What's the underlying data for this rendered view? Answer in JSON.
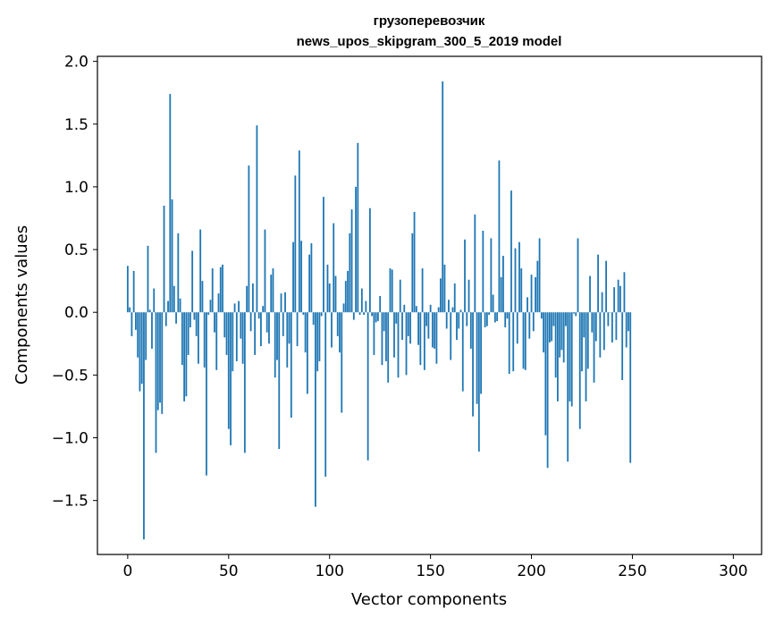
{
  "chart_data": {
    "type": "bar",
    "title_line1": "грузоперевозчик",
    "title_line2": "news_upos_skipgram_300_5_2019 model",
    "xlabel": "Vector components",
    "ylabel": "Components values",
    "xlim": [
      -15,
      314
    ],
    "ylim": [
      -1.93,
      2.04
    ],
    "grid": false,
    "bar_color": "#1f77b4",
    "x_ticks": [
      0,
      50,
      100,
      150,
      200,
      250,
      300
    ],
    "x_tick_labels": [
      "0",
      "50",
      "100",
      "150",
      "200",
      "250",
      "300"
    ],
    "y_ticks": [
      -1.5,
      -1.0,
      -0.5,
      0.0,
      0.5,
      1.0,
      1.5,
      2.0
    ],
    "y_tick_labels": [
      "−1.5",
      "−1.0",
      "−0.5",
      "0.0",
      "0.5",
      "1.0",
      "1.5",
      "2.0"
    ],
    "values": [
      0.37,
      0.04,
      -0.19,
      0.33,
      -0.14,
      -0.36,
      -0.63,
      -0.57,
      -1.81,
      -0.38,
      0.53,
      0.02,
      -0.29,
      0.19,
      -1.12,
      -0.78,
      -0.72,
      -0.81,
      0.85,
      -0.11,
      0.09,
      1.74,
      0.9,
      0.21,
      -0.09,
      0.63,
      0.11,
      -0.42,
      -0.71,
      -0.67,
      -0.34,
      -0.12,
      0.49,
      -0.06,
      -0.19,
      -0.41,
      0.66,
      0.25,
      -0.44,
      -1.3,
      -0.02,
      0.1,
      0.35,
      -0.16,
      -0.46,
      0.15,
      0.36,
      0.38,
      -0.2,
      -0.34,
      -0.93,
      -1.06,
      -0.47,
      0.07,
      -0.39,
      0.09,
      -0.21,
      -0.41,
      -1.12,
      0.21,
      1.17,
      -0.15,
      0.23,
      -0.34,
      1.49,
      -0.05,
      -0.27,
      0.05,
      0.66,
      -0.16,
      -0.25,
      0.3,
      0.35,
      -0.52,
      -0.38,
      -1.09,
      0.15,
      -0.19,
      0.16,
      -0.44,
      -0.25,
      -0.84,
      0.56,
      1.09,
      -0.27,
      1.29,
      0.57,
      -0.02,
      -0.32,
      -0.65,
      0.46,
      0.55,
      -0.1,
      -1.55,
      -0.47,
      -0.39,
      -0.03,
      0.92,
      -1.31,
      0.38,
      0.23,
      -0.28,
      0.71,
      0.29,
      -0.19,
      -0.32,
      -0.8,
      0.07,
      0.25,
      0.33,
      0.63,
      0.82,
      -0.06,
      1.0,
      1.35,
      -0.02,
      0.19,
      -0.02,
      0.09,
      -1.18,
      0.83,
      -0.03,
      -0.34,
      -0.08,
      -0.07,
      0.13,
      -0.42,
      -0.15,
      -0.39,
      -0.56,
      0.35,
      0.34,
      -0.36,
      -0.09,
      -0.52,
      0.26,
      -0.22,
      0.06,
      -0.5,
      -0.19,
      -0.25,
      0.63,
      0.8,
      0.05,
      -0.26,
      -0.42,
      0.35,
      -0.46,
      -0.11,
      -0.21,
      0.06,
      -0.28,
      -0.29,
      -0.41,
      0.04,
      0.27,
      1.84,
      0.38,
      -0.13,
      0.1,
      -0.38,
      0.04,
      0.23,
      -0.22,
      -0.13,
      0.02,
      -0.63,
      0.58,
      -0.11,
      0.26,
      -0.29,
      -0.83,
      0.78,
      -0.73,
      -1.11,
      -0.65,
      0.65,
      -0.12,
      -0.11,
      -0.02,
      0.59,
      0.14,
      -0.08,
      -0.07,
      1.21,
      0.28,
      0.45,
      -0.12,
      -0.05,
      -0.49,
      0.97,
      -0.47,
      0.51,
      -0.25,
      0.56,
      0.35,
      -0.45,
      -0.46,
      0.12,
      -0.21,
      0.3,
      -0.15,
      0.28,
      0.41,
      0.59,
      -0.05,
      -0.32,
      -0.98,
      -1.24,
      -0.24,
      -0.23,
      -0.11,
      -0.52,
      -0.71,
      -0.36,
      -0.3,
      -0.4,
      -0.11,
      -1.19,
      -0.71,
      -0.75,
      -0.01,
      -0.03,
      0.59,
      -0.93,
      -0.47,
      -0.2,
      -0.71,
      -0.45,
      0.29,
      -0.16,
      -0.56,
      -0.23,
      0.46,
      -0.36,
      0.16,
      -0.3,
      0.41,
      -0.11,
      0.0,
      -0.24,
      0.2,
      -0.22,
      0.26,
      0.21,
      -0.54,
      0.32,
      -0.28,
      -0.15,
      -1.2
    ]
  }
}
